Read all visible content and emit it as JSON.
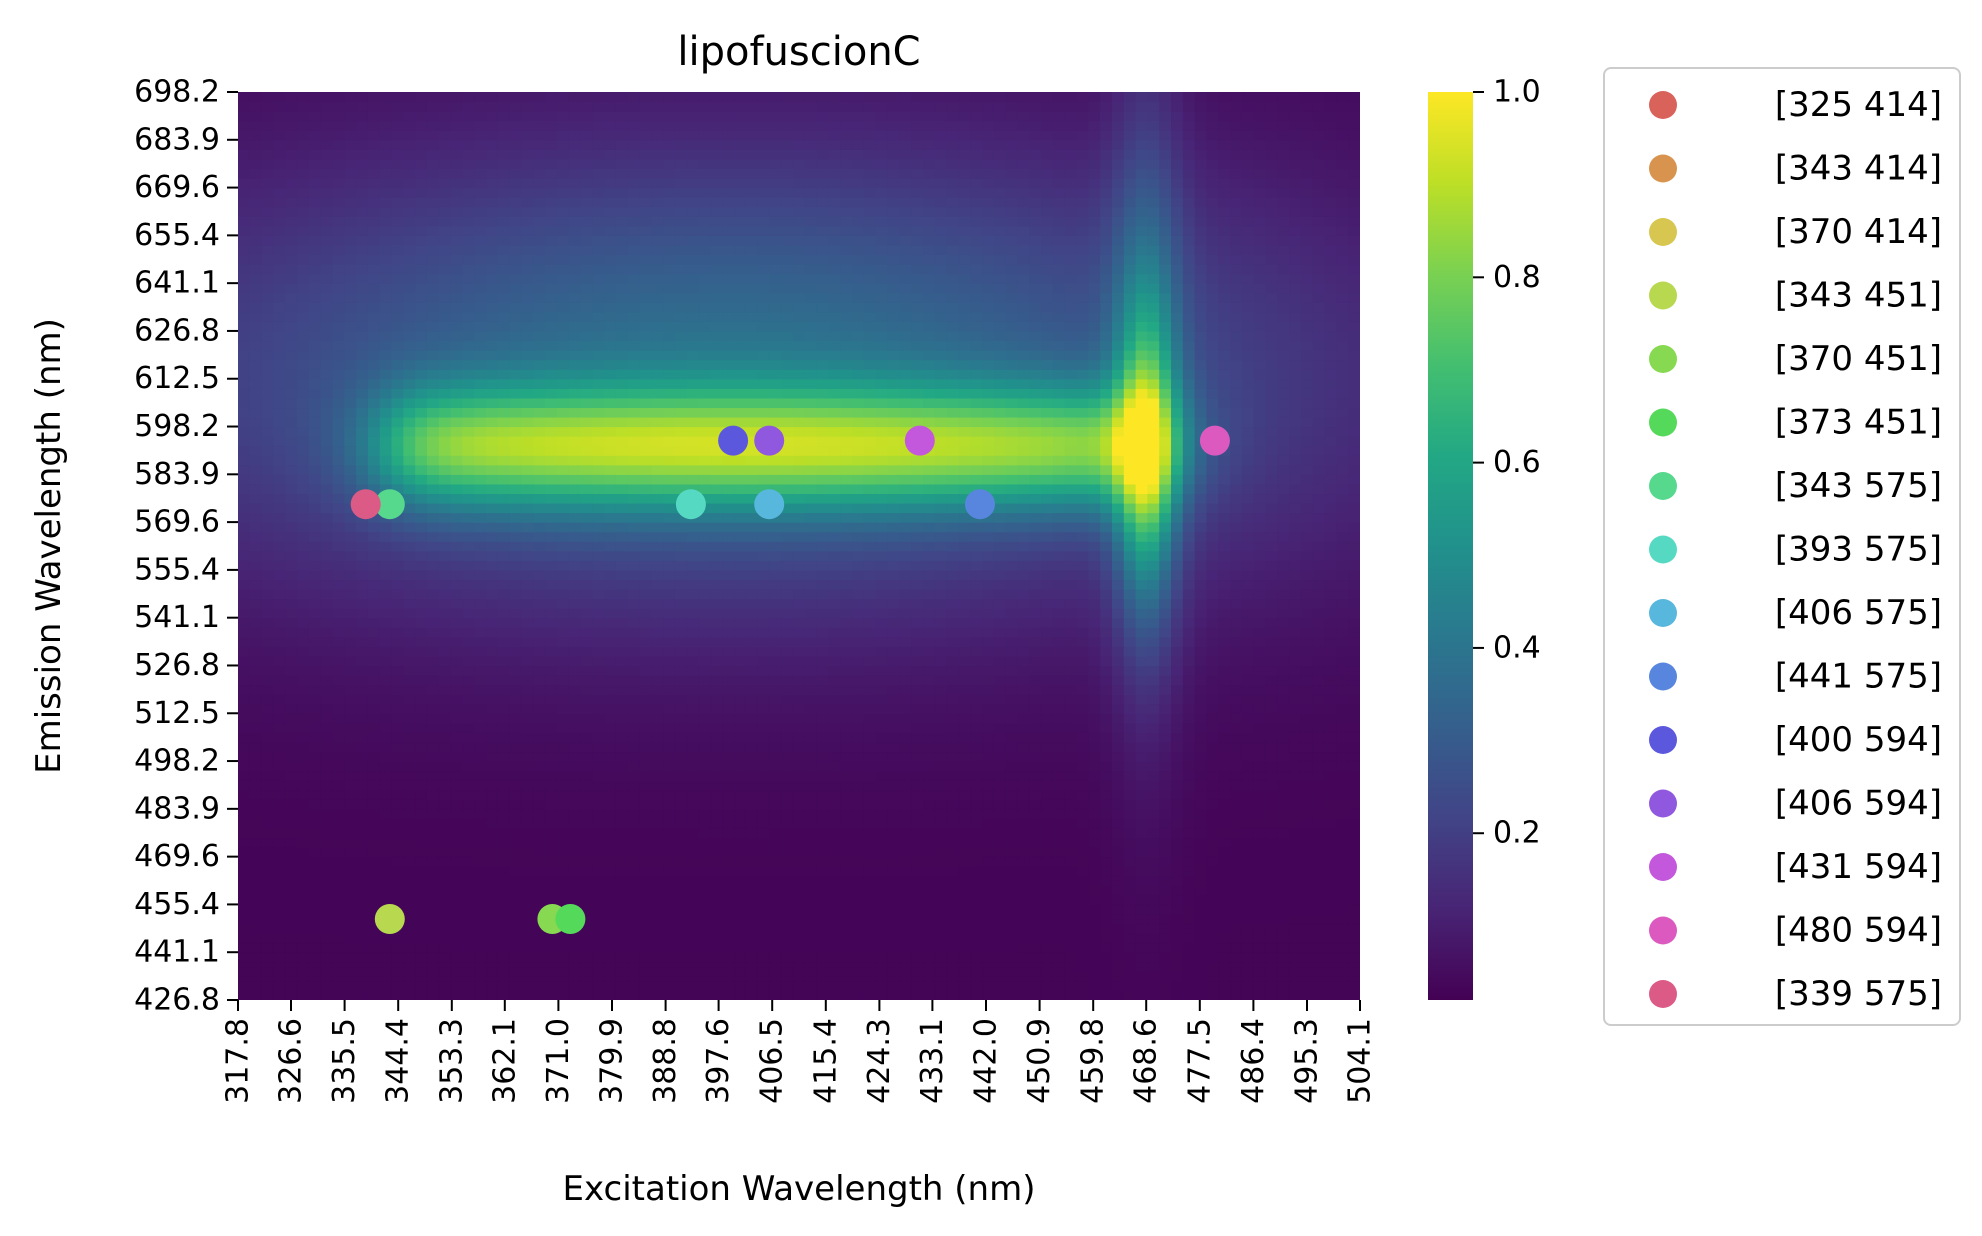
{
  "chart_data": {
    "type": "heatmap",
    "title": "lipofuscionC",
    "xlabel": "Excitation Wavelength (nm)",
    "ylabel": "Emission Wavelength (nm)",
    "x_ticks": [
      "317.8",
      "326.6",
      "335.5",
      "344.4",
      "353.3",
      "362.1",
      "371.0",
      "379.9",
      "388.8",
      "397.6",
      "406.5",
      "415.4",
      "424.3",
      "433.1",
      "442.0",
      "450.9",
      "459.8",
      "468.6",
      "477.5",
      "486.4",
      "495.3",
      "504.1"
    ],
    "y_ticks": [
      "698.2",
      "683.9",
      "669.6",
      "655.4",
      "641.1",
      "626.8",
      "612.5",
      "598.2",
      "583.9",
      "569.6",
      "555.4",
      "541.1",
      "526.8",
      "512.5",
      "498.2",
      "483.9",
      "469.6",
      "455.4",
      "441.1",
      "426.8"
    ],
    "xlim": [
      317.8,
      504.1
    ],
    "ylim": [
      426.8,
      698.2
    ],
    "colorbar": {
      "colormap": "viridis",
      "range": [
        0.02,
        1.0
      ],
      "ticks": [
        "0.2",
        "0.4",
        "0.6",
        "0.8",
        "1.0"
      ],
      "tick_values": [
        0.2,
        0.4,
        0.6,
        0.8,
        1.0
      ]
    },
    "intensity_model": {
      "description": "Normalized fluorescence intensity, peak near excitation 468.6 nm / emission 590 nm",
      "peak": {
        "x": 468.6,
        "y": 590,
        "value": 1.0
      },
      "band": {
        "x_range": [
          340,
          470
        ],
        "y_center": 590,
        "value": 0.78
      }
    },
    "legend_position": "outside-right",
    "points": [
      {
        "label": "[325 414]",
        "color": "#d9625a",
        "x": null,
        "y": null
      },
      {
        "label": "[343 414]",
        "color": "#d8944f",
        "x": null,
        "y": null
      },
      {
        "label": "[370 414]",
        "color": "#d7c650",
        "x": null,
        "y": null
      },
      {
        "label": "[343 451]",
        "color": "#b7d84f",
        "x": 343,
        "y": 451
      },
      {
        "label": "[370 451]",
        "color": "#86d951",
        "x": 370,
        "y": 451
      },
      {
        "label": "[373 451]",
        "color": "#55d95a",
        "x": 373,
        "y": 451
      },
      {
        "label": "[343 575]",
        "color": "#56d98d",
        "x": 343,
        "y": 575
      },
      {
        "label": "[393 575]",
        "color": "#56d9c3",
        "x": 393,
        "y": 575
      },
      {
        "label": "[406 575]",
        "color": "#58b7dc",
        "x": 406,
        "y": 575
      },
      {
        "label": "[441 575]",
        "color": "#5886de",
        "x": 441,
        "y": 575
      },
      {
        "label": "[400 594]",
        "color": "#5b58de",
        "x": 400,
        "y": 594
      },
      {
        "label": "[406 594]",
        "color": "#8f58de",
        "x": 406,
        "y": 594
      },
      {
        "label": "[431 594]",
        "color": "#c458dd",
        "x": 431,
        "y": 594
      },
      {
        "label": "[480 594]",
        "color": "#dc5ac0",
        "x": 480,
        "y": 594
      },
      {
        "label": "[339 575]",
        "color": "#dc5a86",
        "x": 339,
        "y": 575
      }
    ]
  }
}
